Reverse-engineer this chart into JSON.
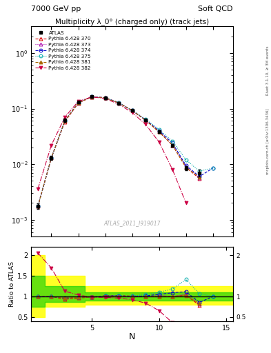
{
  "title_top_left": "7000 GeV pp",
  "title_top_right": "Soft QCD",
  "right_label_top": "Rivet 3.1.10, ≥ 3M events",
  "right_label_bottom": "mcplots.cern.ch [arXiv:1306.3436]",
  "main_title": "Multiplicity λ_0° (charged only) (track jets)",
  "watermark": "ATLAS_2011_I919017",
  "xlabel": "N",
  "ylabel_bottom": "Ratio to ATLAS",
  "N_values": [
    1,
    2,
    3,
    4,
    5,
    6,
    7,
    8,
    9,
    10,
    11,
    12,
    13,
    14,
    15
  ],
  "ATLAS_y": [
    0.00175,
    0.013,
    0.062,
    0.13,
    0.165,
    0.155,
    0.125,
    0.092,
    0.062,
    0.038,
    0.022,
    0.0085,
    0.007,
    null,
    null
  ],
  "ATLAS_yerr": [
    0.0002,
    0.001,
    0.004,
    0.006,
    0.006,
    0.006,
    0.005,
    0.004,
    0.003,
    0.002,
    0.001,
    0.0007,
    0.001,
    null,
    null
  ],
  "series": [
    {
      "label": "Pythia 6.428 370",
      "color": "#dd0000",
      "marker": "^",
      "linestyle": "--",
      "fillstyle": "none",
      "y": [
        0.00175,
        0.013,
        0.058,
        0.125,
        0.163,
        0.158,
        0.128,
        0.093,
        0.062,
        0.038,
        0.022,
        0.0088,
        0.0055,
        null,
        null
      ]
    },
    {
      "label": "Pythia 6.428 373",
      "color": "#aa00aa",
      "marker": "^",
      "linestyle": ":",
      "fillstyle": "none",
      "y": [
        0.00175,
        0.013,
        0.06,
        0.127,
        0.162,
        0.156,
        0.127,
        0.092,
        0.062,
        0.039,
        0.022,
        0.009,
        0.0057,
        null,
        null
      ]
    },
    {
      "label": "Pythia 6.428 374",
      "color": "#0000cc",
      "marker": "o",
      "linestyle": "--",
      "fillstyle": "none",
      "y": [
        0.00175,
        0.013,
        0.06,
        0.128,
        0.163,
        0.157,
        0.127,
        0.092,
        0.063,
        0.04,
        0.024,
        0.0095,
        0.006,
        0.0085,
        null
      ]
    },
    {
      "label": "Pythia 6.428 375",
      "color": "#00aaaa",
      "marker": "o",
      "linestyle": ":",
      "fillstyle": "none",
      "y": [
        0.00175,
        0.013,
        0.06,
        0.128,
        0.163,
        0.157,
        0.128,
        0.093,
        0.065,
        0.042,
        0.026,
        0.012,
        0.0075,
        0.0085,
        null
      ]
    },
    {
      "label": "Pythia 6.428 381",
      "color": "#aa6600",
      "marker": "^",
      "linestyle": "--",
      "fillstyle": "full",
      "y": [
        0.00175,
        0.013,
        0.06,
        0.127,
        0.162,
        0.156,
        0.126,
        0.092,
        0.062,
        0.038,
        0.022,
        0.0087,
        0.0058,
        null,
        null
      ]
    },
    {
      "label": "Pythia 6.428 382",
      "color": "#cc0044",
      "marker": "v",
      "linestyle": "-.",
      "fillstyle": "full",
      "y": [
        0.0036,
        0.022,
        0.07,
        0.135,
        0.162,
        0.152,
        0.12,
        0.085,
        0.052,
        0.025,
        0.008,
        0.002,
        null,
        null,
        null
      ]
    }
  ],
  "ratio_series": [
    {
      "color": "#dd0000",
      "marker": "^",
      "linestyle": "--",
      "fillstyle": "none",
      "ratio": [
        1.0,
        1.0,
        0.935,
        0.962,
        0.988,
        1.019,
        1.024,
        1.011,
        1.0,
        1.0,
        1.0,
        1.035,
        0.786,
        null,
        null
      ]
    },
    {
      "color": "#aa00aa",
      "marker": "^",
      "linestyle": ":",
      "fillstyle": "none",
      "ratio": [
        1.0,
        1.0,
        0.968,
        0.977,
        0.982,
        1.006,
        1.016,
        1.0,
        1.0,
        1.026,
        1.0,
        1.059,
        0.814,
        null,
        null
      ]
    },
    {
      "color": "#0000cc",
      "marker": "o",
      "linestyle": "--",
      "fillstyle": "none",
      "ratio": [
        1.0,
        1.0,
        0.968,
        0.985,
        0.988,
        1.013,
        1.016,
        1.0,
        1.016,
        1.053,
        1.091,
        1.118,
        0.857,
        1.0,
        null
      ]
    },
    {
      "color": "#00aaaa",
      "marker": "o",
      "linestyle": ":",
      "fillstyle": "none",
      "ratio": [
        1.0,
        1.0,
        0.968,
        0.985,
        0.988,
        1.013,
        1.024,
        1.011,
        1.048,
        1.105,
        1.182,
        1.412,
        1.071,
        1.0,
        null
      ]
    },
    {
      "color": "#aa6600",
      "marker": "^",
      "linestyle": "--",
      "fillstyle": "full",
      "ratio": [
        1.0,
        1.0,
        0.968,
        0.977,
        0.982,
        1.006,
        1.008,
        1.0,
        1.0,
        1.0,
        1.0,
        1.024,
        0.829,
        null,
        null
      ]
    },
    {
      "color": "#cc0044",
      "marker": "v",
      "linestyle": "-.",
      "fillstyle": "full",
      "ratio": [
        2.057,
        1.692,
        1.129,
        1.038,
        0.982,
        0.981,
        0.96,
        0.924,
        0.839,
        0.658,
        0.364,
        0.235,
        null,
        null,
        null
      ]
    }
  ]
}
